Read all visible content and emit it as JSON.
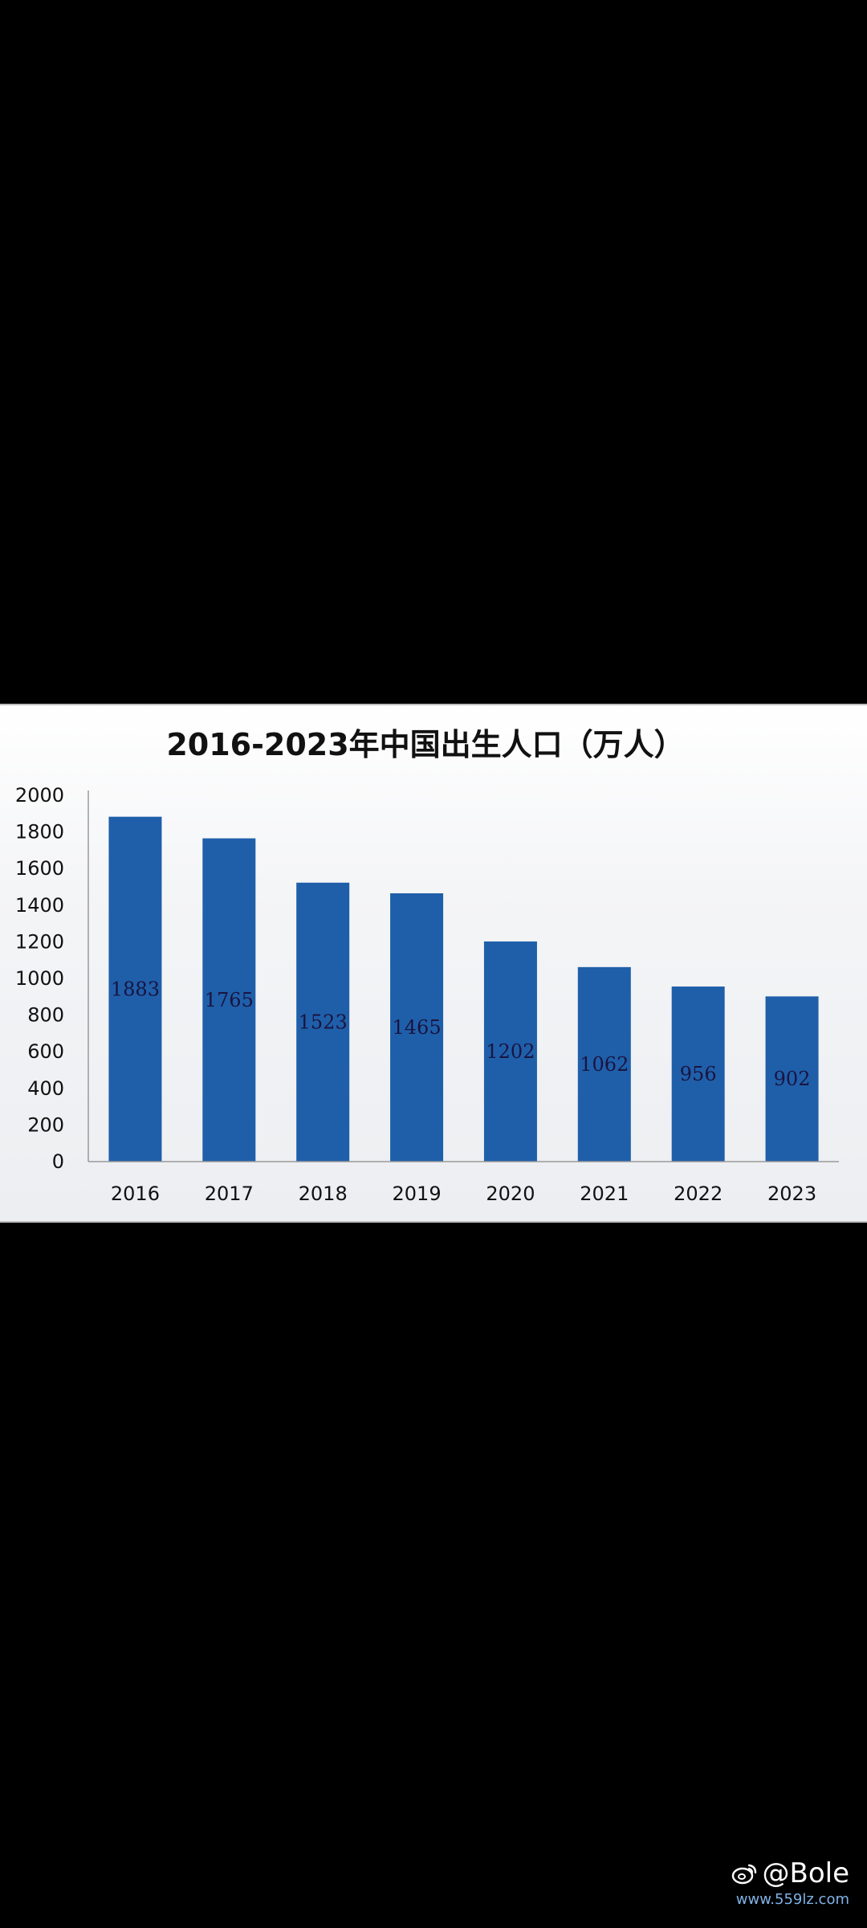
{
  "chart_data": {
    "type": "bar",
    "title": "2016-2023年中国出生人口（万人）",
    "xlabel": "",
    "ylabel": "",
    "categories": [
      "2016",
      "2017",
      "2018",
      "2019",
      "2020",
      "2021",
      "2022",
      "2023"
    ],
    "values": [
      1883,
      1765,
      1523,
      1465,
      1202,
      1062,
      956,
      902
    ],
    "data_labels": [
      "1883",
      "1765",
      "1523",
      "1465",
      "1202",
      "1062",
      "956",
      "902"
    ],
    "ylim": [
      0,
      2000
    ],
    "yticks": [
      "0",
      "200",
      "400",
      "600",
      "800",
      "1000",
      "1200",
      "1400",
      "1600",
      "1800",
      "2000"
    ],
    "grid": false,
    "legend": "none",
    "bar_color": "#1f5faa"
  },
  "watermark": {
    "handle": "@Bole",
    "site": "www.559lz.com",
    "icon": "weibo-icon"
  }
}
